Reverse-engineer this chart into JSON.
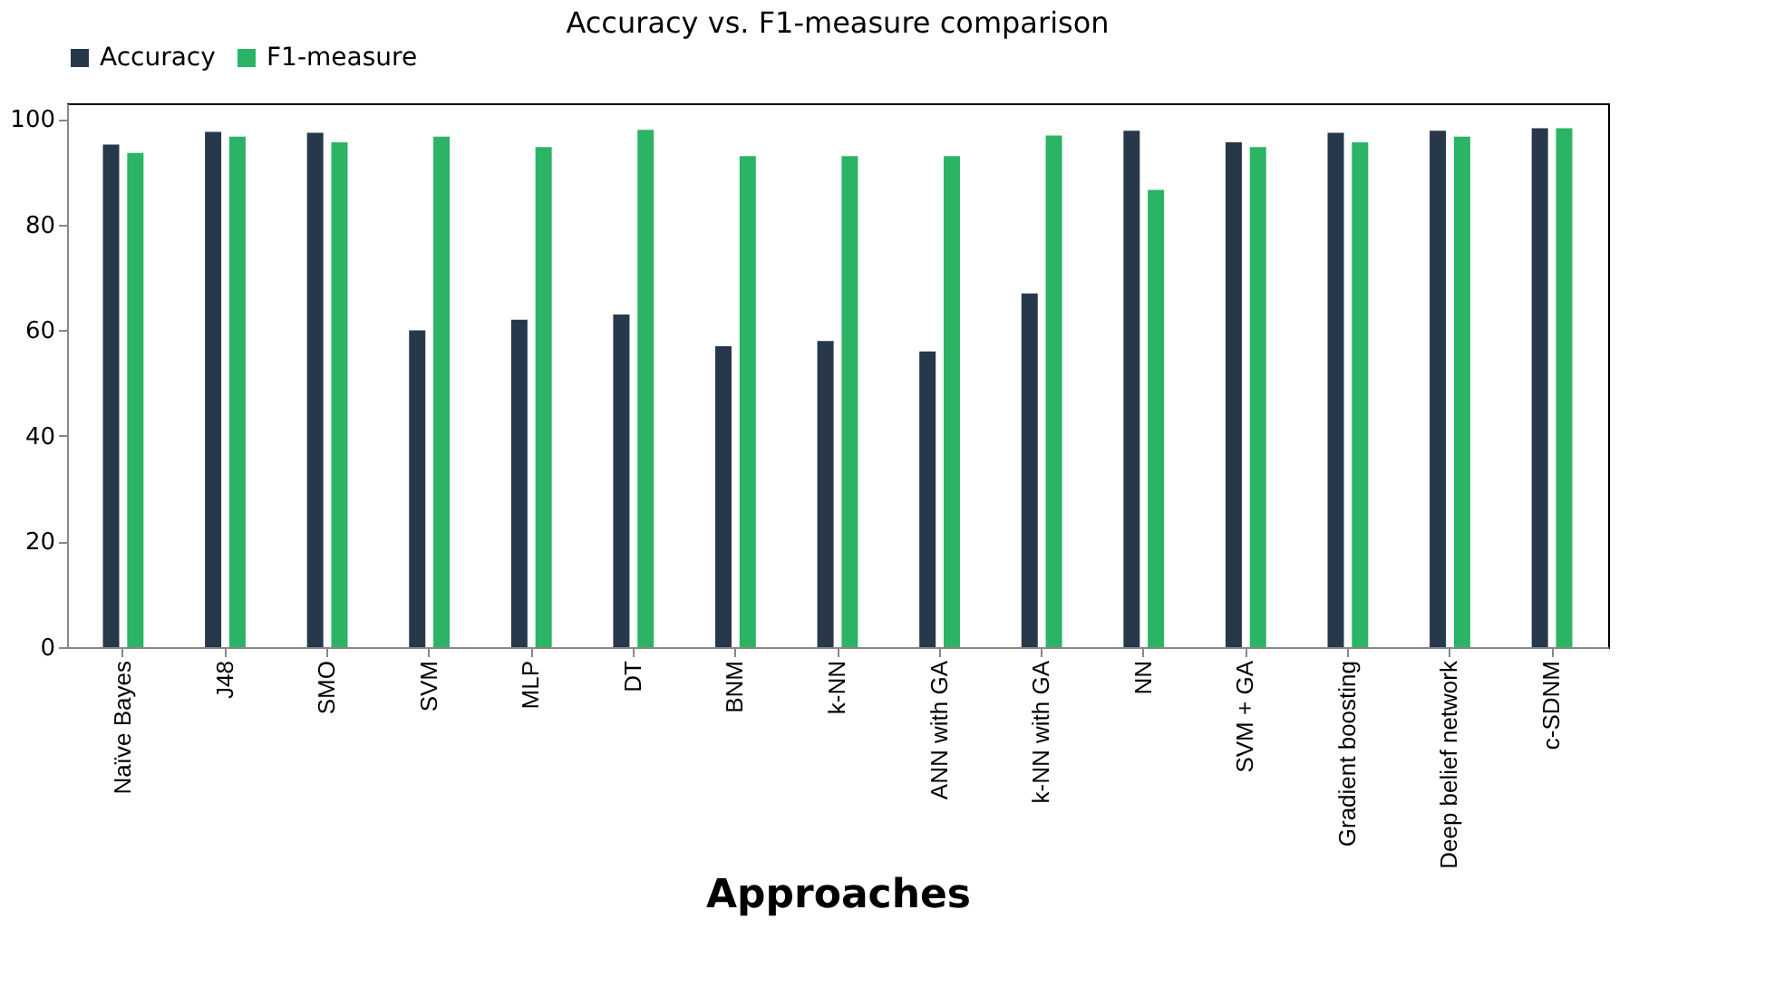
{
  "chart_data": {
    "type": "bar",
    "title": "Accuracy vs. F1-measure comparison",
    "xlabel": "Approaches",
    "categories": [
      "Naïve Bayes",
      "J48",
      "SMO",
      "SVM",
      "MLP",
      "DT",
      "BNM",
      "k-NN",
      "ANN with GA",
      "k-NN with GA",
      "NN",
      "SVM + GA",
      "Gradient boosting",
      "Deep belief network",
      "c-SDNM"
    ],
    "series": [
      {
        "name": "Accuracy",
        "color": "#28384b",
        "values": [
          95.2,
          97.6,
          97.4,
          60,
          62,
          63,
          57,
          58,
          56,
          67,
          97.8,
          95.6,
          97.4,
          97.8,
          98.3
        ]
      },
      {
        "name": "F1-measure",
        "color": "#2ab463",
        "values": [
          93.6,
          96.7,
          95.6,
          96.7,
          94.7,
          98,
          93,
          93,
          93,
          96.9,
          86.6,
          94.7,
          95.6,
          96.7,
          98.3
        ]
      }
    ],
    "ylim": [
      0,
      103
    ],
    "yticks": [
      0,
      20,
      40,
      60,
      80,
      100
    ],
    "grid": false,
    "legend": "top"
  }
}
